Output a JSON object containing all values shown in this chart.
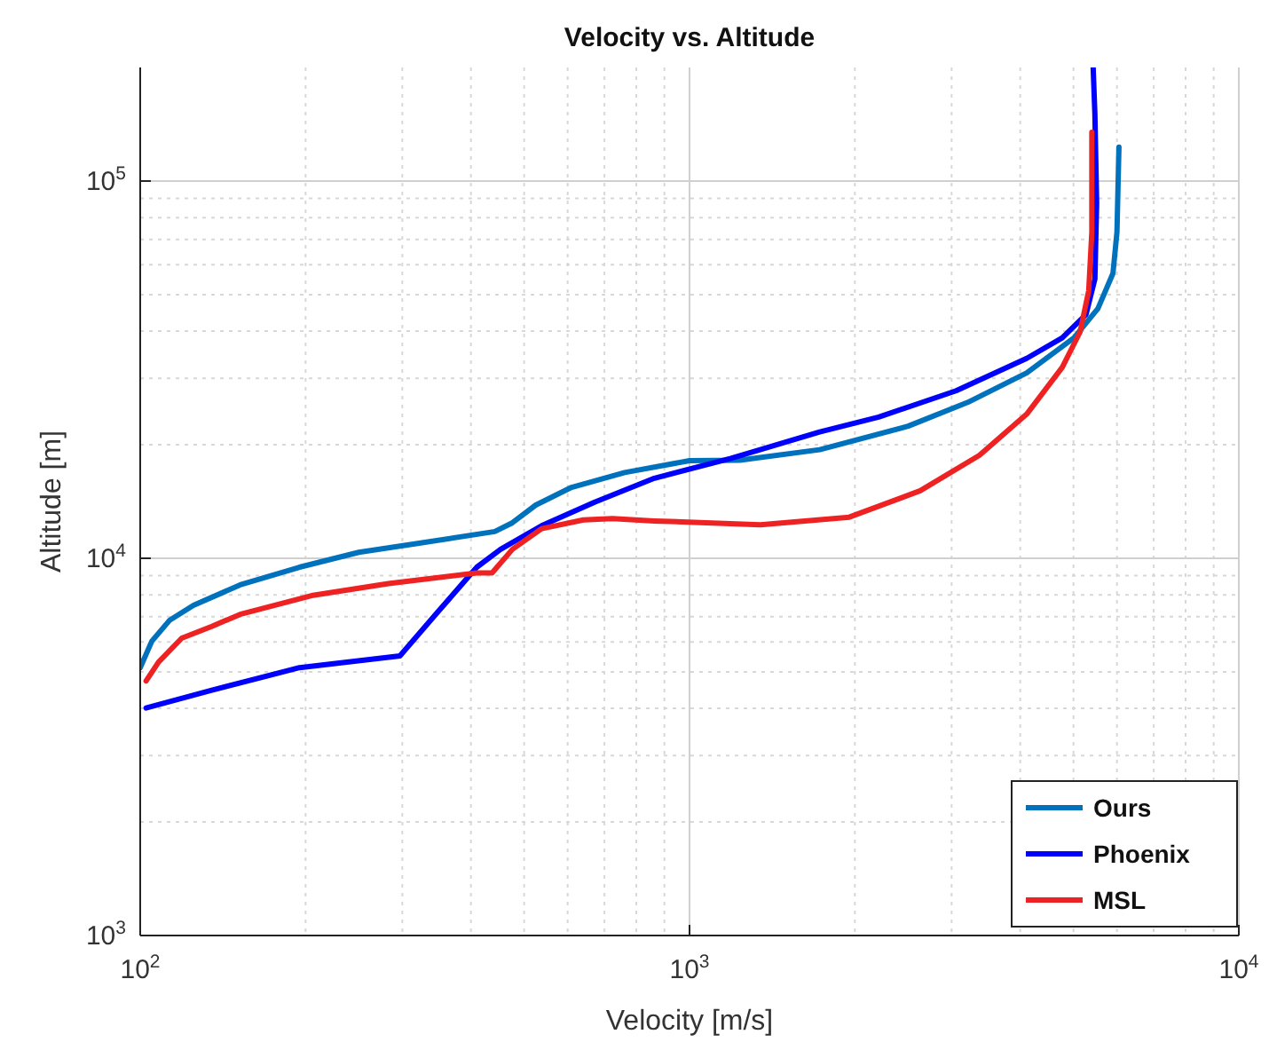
{
  "chart_data": {
    "type": "line",
    "title": "Velocity vs. Altitude",
    "xlabel": "Velocity [m/s]",
    "ylabel": "Altitude [m]",
    "log": "xy",
    "grid": true,
    "legend": "bottom right",
    "line_style": "solid",
    "xlim": [
      100,
      10000
    ],
    "ylim": [
      1000,
      200000
    ],
    "xticks": [
      {
        "value": 100,
        "label": "10$^{2}$"
      },
      {
        "value": 1000,
        "label": "10$^{3}$"
      },
      {
        "value": 10000,
        "label": "10$^{4}$"
      }
    ],
    "yticks": [
      {
        "value": 1000,
        "label": "10$^{3}$"
      },
      {
        "value": 10000,
        "label": "10$^{4}$"
      },
      {
        "value": 100000,
        "label": "10$^{5}$"
      }
    ],
    "series": [
      {
        "name": "Ours",
        "color": "#0072bd",
        "x": [
          100,
          105,
          113,
          125,
          152,
          195,
          250,
          320,
          442,
          476,
          525,
          610,
          762,
          1000,
          1235,
          1726,
          2500,
          3210,
          4110,
          5010,
          5540,
          5900,
          6000,
          6050
        ],
        "values": [
          5130,
          6030,
          6840,
          7500,
          8500,
          9470,
          10370,
          10950,
          11770,
          12420,
          13840,
          15420,
          16880,
          18150,
          18200,
          19400,
          22400,
          25900,
          31000,
          38400,
          45900,
          56900,
          73200,
          123000
        ]
      },
      {
        "name": "Phoenix",
        "color": "#0000ff",
        "x": [
          102.5,
          135,
          195,
          297,
          345,
          410,
          453,
          538,
          672,
          863,
          1190,
          1726,
          2210,
          3057,
          4110,
          4770,
          5270,
          5470,
          5510,
          5470,
          5430
        ],
        "values": [
          4010,
          4470,
          5130,
          5510,
          7100,
          9470,
          10560,
          12200,
          14090,
          16300,
          18400,
          21630,
          23680,
          27800,
          33880,
          38380,
          44270,
          54990,
          87500,
          150000,
          200000
        ]
      },
      {
        "name": "MSL",
        "color": "#ee2222",
        "x": [
          102.5,
          108,
          119,
          135,
          152,
          205,
          283,
          410,
          437,
          476,
          538,
          641,
          724,
          863,
          1346,
          1953,
          2630,
          3370,
          4110,
          4770,
          5140,
          5330,
          5400,
          5400
        ],
        "values": [
          4730,
          5310,
          6140,
          6600,
          7100,
          7960,
          8570,
          9140,
          9140,
          10560,
          11980,
          12640,
          12740,
          12560,
          12270,
          12850,
          15100,
          18740,
          24100,
          32070,
          39800,
          51200,
          73200,
          134700
        ]
      }
    ]
  }
}
